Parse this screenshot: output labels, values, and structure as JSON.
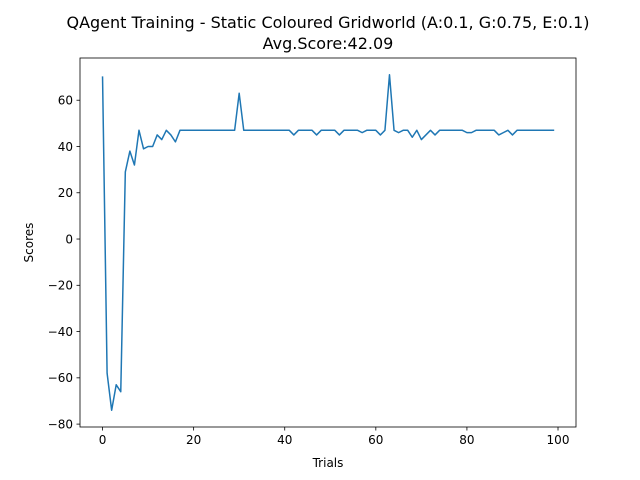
{
  "chart_data": {
    "type": "line",
    "title": "QAgent Training - Static Coloured Gridworld (A:0.1, G:0.75, E:0.1)",
    "subtitle": "Avg.Score:42.09",
    "xlabel": "Trials",
    "ylabel": "Scores",
    "xlim": [
      -4.95,
      103.95
    ],
    "ylim": [
      -81.25,
      78.25
    ],
    "xticks": [
      0,
      20,
      40,
      60,
      80,
      100
    ],
    "xtick_labels": [
      "0",
      "20",
      "40",
      "60",
      "80",
      "100"
    ],
    "yticks": [
      60,
      40,
      20,
      0,
      -20,
      -40,
      -60,
      -80
    ],
    "ytick_labels": [
      "60",
      "40",
      "20",
      "0",
      "−20",
      "−40",
      "−60",
      "−80"
    ],
    "grid": false,
    "line_color": "#1f77b4",
    "series": [
      {
        "x": [
          0,
          1,
          2,
          3,
          4,
          5,
          6,
          7,
          8,
          9,
          10,
          11,
          12,
          13,
          14,
          15,
          16,
          17,
          18,
          19,
          20,
          21,
          22,
          23,
          24,
          25,
          26,
          27,
          28,
          29,
          30,
          31,
          32,
          33,
          34,
          35,
          36,
          37,
          38,
          39,
          40,
          41,
          42,
          43,
          44,
          45,
          46,
          47,
          48,
          49,
          50,
          51,
          52,
          53,
          54,
          55,
          56,
          57,
          58,
          59,
          60,
          61,
          62,
          63,
          64,
          65,
          66,
          67,
          68,
          69,
          70,
          71,
          72,
          73,
          74,
          75,
          76,
          77,
          78,
          79,
          80,
          81,
          82,
          83,
          84,
          85,
          86,
          87,
          88,
          89,
          90,
          91,
          92,
          93,
          94,
          95,
          96,
          97,
          98,
          99
        ],
        "values": [
          70,
          -58,
          -74,
          -63,
          -66,
          29,
          38,
          32,
          47,
          39,
          40,
          40,
          45,
          43,
          47,
          45,
          42,
          47,
          47,
          47,
          47,
          47,
          47,
          47,
          47,
          47,
          47,
          47,
          47,
          47,
          63,
          47,
          47,
          47,
          47,
          47,
          47,
          47,
          47,
          47,
          47,
          47,
          45,
          47,
          47,
          47,
          47,
          45,
          47,
          47,
          47,
          47,
          45,
          47,
          47,
          47,
          47,
          46,
          47,
          47,
          47,
          45,
          47,
          71,
          47,
          46,
          47,
          47,
          44,
          47,
          43,
          45,
          47,
          45,
          47,
          47,
          47,
          47,
          47,
          47,
          46,
          46,
          47,
          47,
          47,
          47,
          47,
          45,
          46,
          47,
          45,
          47,
          47,
          47,
          47,
          47,
          47,
          47,
          47,
          47
        ]
      }
    ]
  }
}
